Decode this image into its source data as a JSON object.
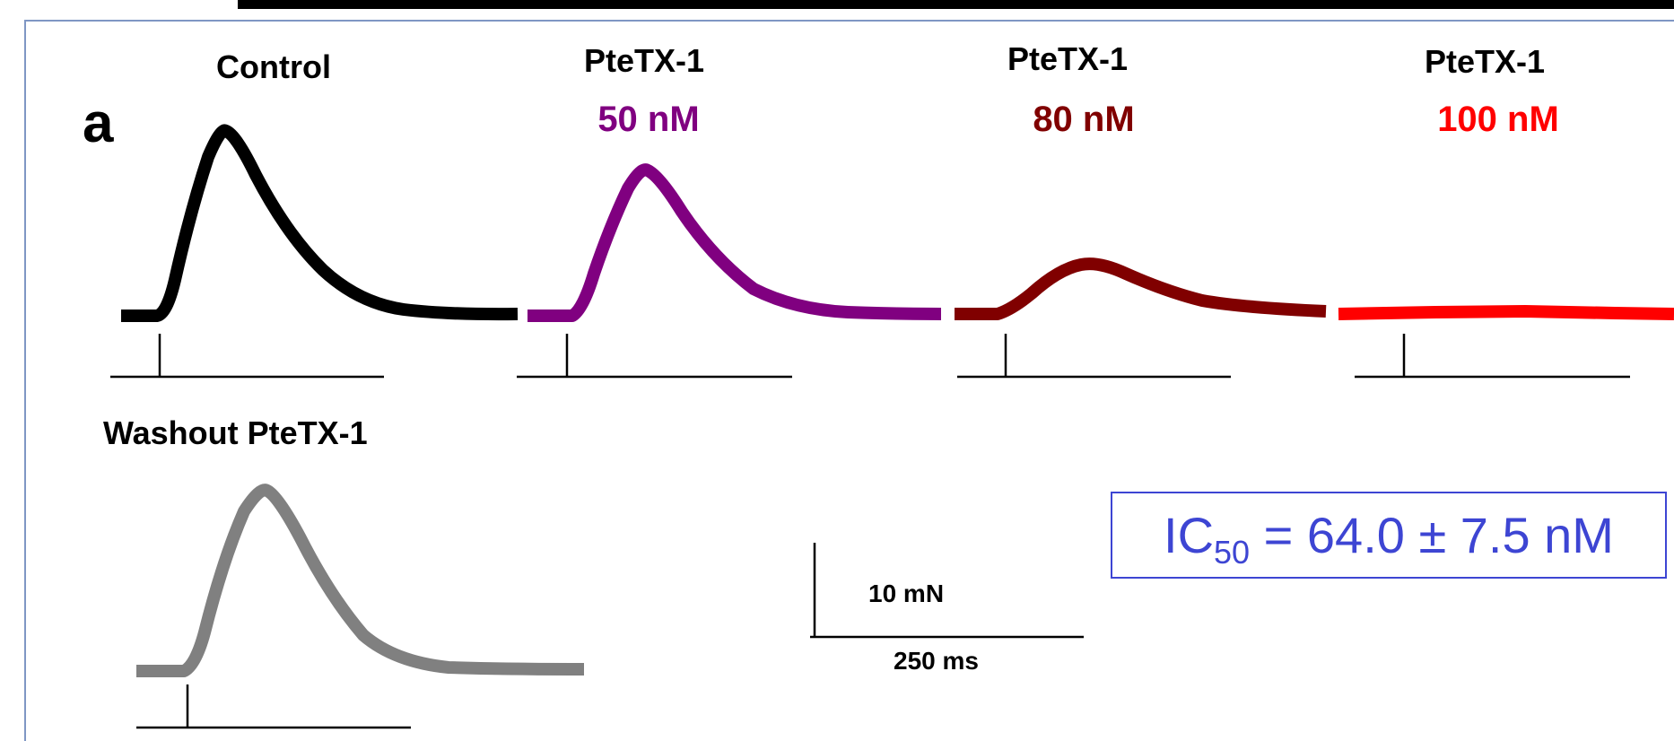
{
  "panel_label": "a",
  "traces": [
    {
      "title": "Control",
      "concentration": "",
      "color": "#000000"
    },
    {
      "title": "PteTX-1",
      "concentration": "50 nM",
      "color": "#800080"
    },
    {
      "title": "PteTX-1",
      "concentration": "80 nM",
      "color": "#800000"
    },
    {
      "title": "PteTX-1",
      "concentration": "100 nM",
      "color": "#ff0000"
    },
    {
      "title": "Washout PteTX-1",
      "concentration": "",
      "color": "#808080"
    }
  ],
  "scale_bar": {
    "force_label": "10 mN",
    "time_label": "250 ms"
  },
  "ic50": {
    "prefix": "IC",
    "subscript": "50",
    "value_text": " = 64.0 ± 7.5 nM"
  }
}
